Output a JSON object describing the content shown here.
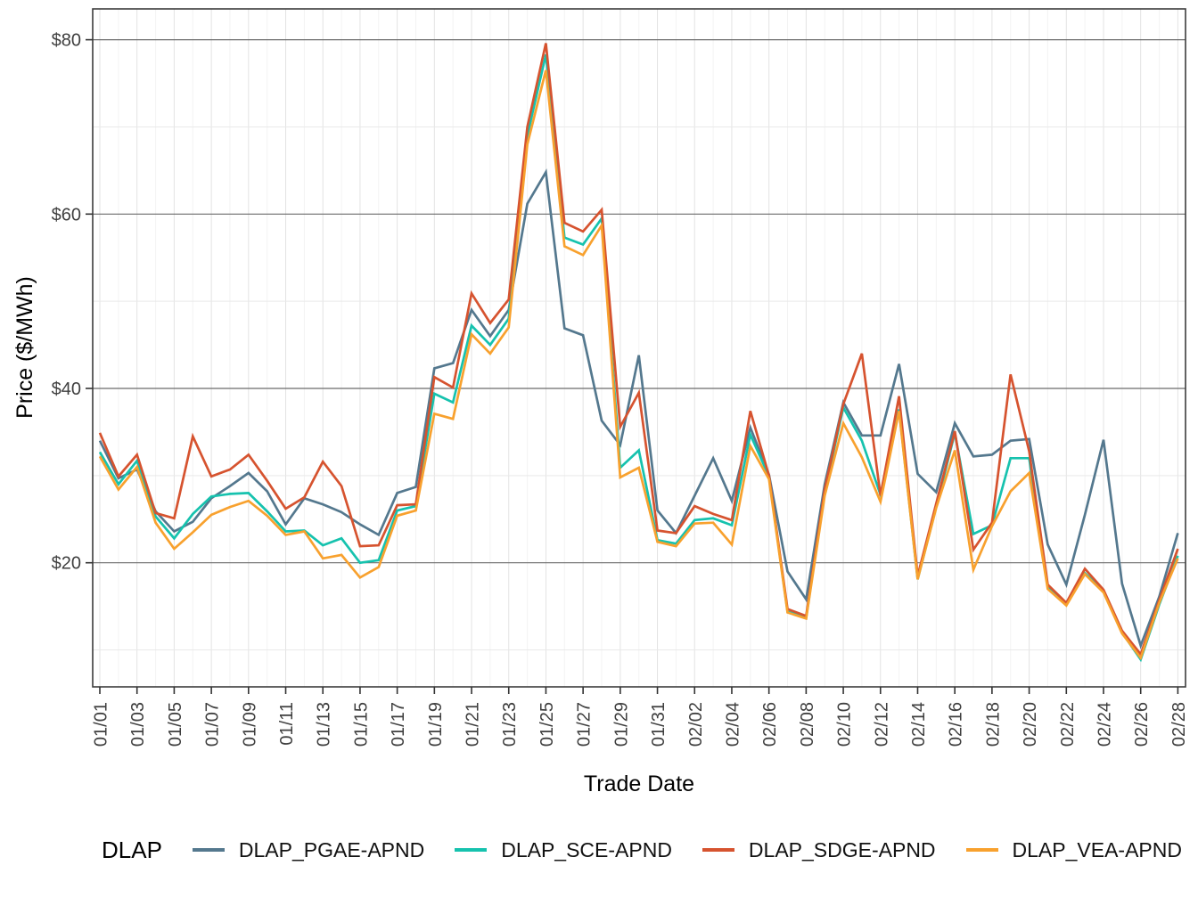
{
  "chart_data": {
    "type": "line",
    "title": "",
    "xlabel": "Trade Date",
    "ylabel": "Price ($/MWh)",
    "x": [
      "01/01",
      "01/02",
      "01/03",
      "01/04",
      "01/05",
      "01/06",
      "01/07",
      "01/08",
      "01/09",
      "01/10",
      "01/11",
      "01/12",
      "01/13",
      "01/14",
      "01/15",
      "01/16",
      "01/17",
      "01/18",
      "01/19",
      "01/20",
      "01/21",
      "01/22",
      "01/23",
      "01/24",
      "01/25",
      "01/26",
      "01/27",
      "01/28",
      "01/29",
      "01/30",
      "01/31",
      "02/01",
      "02/02",
      "02/03",
      "02/04",
      "02/05",
      "02/06",
      "02/07",
      "02/08",
      "02/09",
      "02/10",
      "02/11",
      "02/12",
      "02/13",
      "02/14",
      "02/15",
      "02/16",
      "02/17",
      "02/18",
      "02/19",
      "02/20",
      "02/21",
      "02/22",
      "02/23",
      "02/24",
      "02/25",
      "02/26",
      "02/27",
      "02/28"
    ],
    "x_tick_every": 2,
    "y_tick_values": [
      20,
      40,
      60,
      80
    ],
    "y_tick_labels": [
      "$20",
      "$40",
      "$60",
      "$80"
    ],
    "y_minor_values": [
      10,
      30,
      50,
      70
    ],
    "ylim": [
      5.8,
      83.5
    ],
    "grid": true,
    "legend": {
      "title": "DLAP",
      "position": "bottom"
    },
    "series": [
      {
        "name": "DLAP_PGAE-APND",
        "color": "#54788E",
        "values": [
          34.0,
          29.7,
          30.7,
          25.9,
          23.6,
          24.7,
          27.4,
          28.8,
          30.3,
          28.2,
          24.4,
          27.4,
          26.7,
          25.8,
          24.4,
          23.2,
          28.0,
          28.7,
          42.3,
          42.9,
          49.0,
          46.0,
          49.0,
          61.2,
          64.8,
          46.9,
          46.1,
          36.3,
          33.5,
          43.8,
          26.0,
          23.4,
          27.7,
          32.0,
          27.1,
          35.5,
          30.1,
          19.0,
          15.8,
          29.0,
          38.4,
          34.6,
          34.6,
          42.8,
          30.2,
          28.1,
          36.0,
          32.2,
          32.4,
          34.0,
          34.2,
          22.1,
          17.5,
          25.5,
          34.1,
          17.6,
          10.5,
          16.1,
          23.4
        ]
      },
      {
        "name": "DLAP_SCE-APND",
        "color": "#16C2AE",
        "values": [
          32.7,
          29.0,
          31.7,
          25.3,
          22.8,
          25.6,
          27.6,
          27.9,
          28.0,
          25.9,
          23.6,
          23.7,
          22.0,
          22.8,
          20.0,
          20.3,
          26.0,
          26.5,
          39.4,
          38.4,
          47.2,
          45.0,
          48.0,
          69.0,
          78.3,
          57.3,
          56.5,
          59.5,
          30.9,
          32.9,
          22.6,
          22.2,
          24.9,
          25.1,
          24.3,
          34.7,
          29.9,
          14.4,
          13.7,
          28.2,
          37.8,
          34.0,
          27.8,
          37.6,
          18.1,
          26.4,
          34.9,
          23.3,
          24.3,
          32.0,
          32.0,
          17.3,
          15.3,
          18.8,
          16.8,
          12.0,
          8.9,
          15.2,
          20.8
        ]
      },
      {
        "name": "DLAP_SDGE-APND",
        "color": "#D6532F",
        "values": [
          34.9,
          29.9,
          32.4,
          25.7,
          25.1,
          34.5,
          29.9,
          30.7,
          32.4,
          29.4,
          26.2,
          27.5,
          31.6,
          28.8,
          21.9,
          22.0,
          26.6,
          26.7,
          41.3,
          40.1,
          50.9,
          47.5,
          50.2,
          70.0,
          79.6,
          59.0,
          58.0,
          60.5,
          35.6,
          39.5,
          23.7,
          23.4,
          26.5,
          25.6,
          24.9,
          37.4,
          30.0,
          14.7,
          13.9,
          28.4,
          38.2,
          44.0,
          27.7,
          39.1,
          18.5,
          26.8,
          35.1,
          21.5,
          24.6,
          41.6,
          32.8,
          17.5,
          15.4,
          19.3,
          16.9,
          12.2,
          9.5,
          15.7,
          21.6
        ]
      },
      {
        "name": "DLAP_VEA-APND",
        "color": "#F8A12E",
        "values": [
          32.2,
          28.4,
          31.0,
          24.6,
          21.6,
          23.5,
          25.5,
          26.4,
          27.1,
          25.4,
          23.2,
          23.6,
          20.5,
          20.9,
          18.3,
          19.5,
          25.4,
          26.0,
          37.1,
          36.5,
          46.2,
          44.0,
          47.0,
          68.0,
          76.5,
          56.3,
          55.3,
          58.7,
          29.8,
          30.9,
          22.4,
          21.9,
          24.5,
          24.6,
          22.1,
          33.4,
          29.6,
          14.3,
          13.6,
          27.7,
          36.0,
          32.1,
          27.0,
          37.4,
          18.1,
          26.3,
          32.9,
          19.2,
          24.2,
          28.2,
          30.3,
          17.0,
          15.1,
          18.7,
          16.6,
          11.9,
          9.1,
          15.4,
          20.5
        ]
      }
    ],
    "style": {
      "panel_border": "#3c3c3c",
      "grid_major_y": "#6b6b6b",
      "grid_minor_y": "#e9e9e9",
      "grid_major_x": "#e3e3e3",
      "grid_minor_x": "#f3f3f3",
      "tick_color": "#333333"
    }
  }
}
